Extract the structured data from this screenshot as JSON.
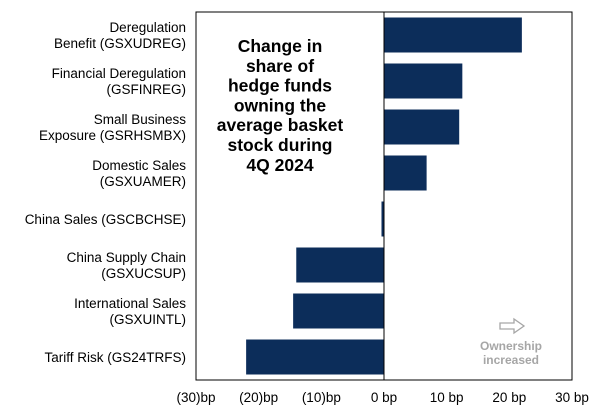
{
  "chart_data": {
    "type": "bar",
    "orientation": "horizontal",
    "title_lines": [
      "Change in",
      "share of",
      "hedge funds",
      "owning the",
      "average basket",
      "stock during",
      "4Q 2024"
    ],
    "categories": [
      [
        "Deregulation",
        "Benefit (GSXUDREG)"
      ],
      [
        "Financial Deregulation",
        "(GSFINREG)"
      ],
      [
        "Small Business",
        "Exposure (GSRHSMBX)"
      ],
      [
        "Domestic Sales",
        "(GSXUAMER)"
      ],
      [
        "China Sales (GSCBCHSE)"
      ],
      [
        "China Supply Chain",
        "(GSXUCSUP)"
      ],
      [
        "International Sales",
        "(GSXUINTL)"
      ],
      [
        "Tariff Risk (GS24TRFS)"
      ]
    ],
    "values": [
      22,
      12.5,
      12,
      6.8,
      -0.4,
      -14,
      -14.5,
      -22
    ],
    "unit": "bp",
    "xlim": [
      -30,
      30
    ],
    "ticks": [
      -30,
      -20,
      -10,
      0,
      10,
      20,
      30
    ],
    "tick_labels": [
      "(30)bp",
      "(20)bp",
      "(10)bp",
      "0 bp",
      "10 bp",
      "20 bp",
      "30 bp"
    ],
    "annotation_lines": [
      "Ownership",
      "increased"
    ],
    "annotation_arrow": "right-arrow-icon"
  },
  "colors": {
    "bar": "#0c2d5a",
    "axis": "#000000",
    "annotation": "#a6a6a6"
  }
}
